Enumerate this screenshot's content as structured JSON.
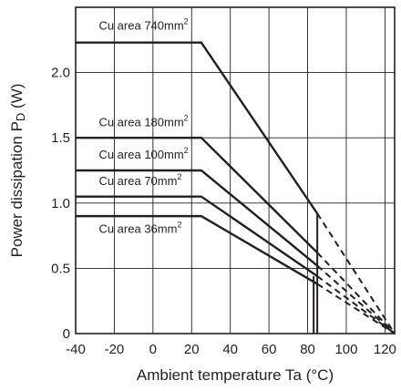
{
  "chart_data": {
    "type": "line",
    "xlabel": "Ambient temperature Ta (°C)",
    "ylabel": "Power dissipation PD (W)",
    "ylabel_parts": {
      "main": "Power dissipation P",
      "sub": "D",
      "tail": " (W)"
    },
    "xlim": [
      -40,
      125
    ],
    "ylim": [
      0,
      2.5
    ],
    "x_ticks": [
      -40,
      -20,
      0,
      20,
      40,
      60,
      80,
      100,
      120
    ],
    "x_tick_labels": [
      "-40",
      "-20",
      "0",
      "20",
      "40",
      "60",
      "80",
      "100",
      "120"
    ],
    "y_ticks": [
      0,
      0.5,
      1.0,
      1.5,
      2.0
    ],
    "y_tick_labels": [
      "0",
      "0.5",
      "1.0",
      "1.5",
      "2.0"
    ],
    "grid": true,
    "max_operating_temperature": 85,
    "series": [
      {
        "name": "Cu area 740mm2",
        "label_main": "Cu area 740mm",
        "label_sup": "2",
        "solid": [
          [
            -40,
            2.23
          ],
          [
            25,
            2.23
          ],
          [
            85,
            0.92
          ]
        ],
        "dashed": [
          [
            85,
            0.92
          ],
          [
            125,
            0
          ]
        ]
      },
      {
        "name": "Cu area 180mm2",
        "label_main": "Cu area 180mm",
        "label_sup": "2",
        "solid": [
          [
            -40,
            1.5
          ],
          [
            25,
            1.5
          ],
          [
            85,
            0.62
          ]
        ],
        "dashed": [
          [
            85,
            0.62
          ],
          [
            125,
            0
          ]
        ]
      },
      {
        "name": "Cu area 100mm2",
        "label_main": "Cu area 100mm",
        "label_sup": "2",
        "solid": [
          [
            -40,
            1.25
          ],
          [
            25,
            1.25
          ],
          [
            85,
            0.52
          ]
        ],
        "dashed": [
          [
            85,
            0.52
          ],
          [
            125,
            0
          ]
        ]
      },
      {
        "name": "Cu area 70mm2",
        "label_main": "Cu area 70mm",
        "label_sup": "2",
        "solid": [
          [
            -40,
            1.05
          ],
          [
            25,
            1.05
          ],
          [
            85,
            0.44
          ]
        ],
        "dashed": [
          [
            85,
            0.44
          ],
          [
            125,
            0
          ]
        ]
      },
      {
        "name": "Cu area 36mm2",
        "label_main": "Cu area 36mm",
        "label_sup": "2",
        "solid": [
          [
            -40,
            0.9
          ],
          [
            25,
            0.9
          ],
          [
            85,
            0.38
          ]
        ],
        "dashed": [
          [
            85,
            0.38
          ],
          [
            125,
            0
          ]
        ]
      }
    ],
    "label_positions": [
      [
        -28,
        2.33
      ],
      [
        -28,
        1.59
      ],
      [
        -28,
        1.34
      ],
      [
        -28,
        1.14
      ],
      [
        -28,
        0.77
      ]
    ]
  }
}
